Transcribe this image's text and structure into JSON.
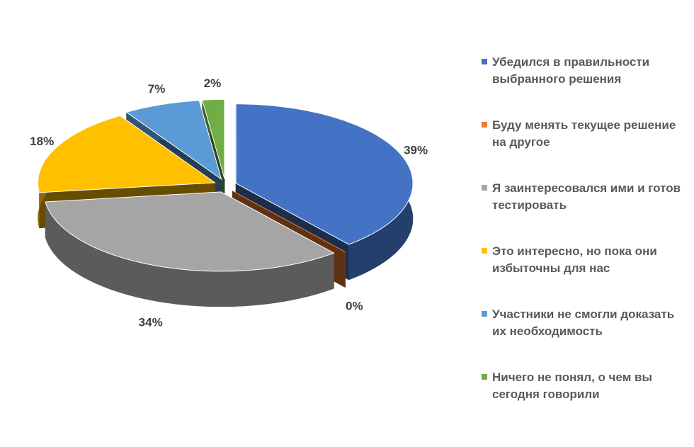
{
  "chart_data": {
    "type": "pie",
    "categories": [
      "Убедился в правильности выбранного решения",
      "Буду менять текущее решение на другое",
      "Я заинтересовался ими и готов тестировать",
      "Это интересно, но пока они избыточны для нас",
      "Участники не смогли доказать их необходимость",
      "Ничего не понял, о чем вы сегодня говорили"
    ],
    "values": [
      39,
      0,
      34,
      18,
      7,
      2
    ],
    "value_labels": [
      "39%",
      "0%",
      "34%",
      "18%",
      "7%",
      "2%"
    ],
    "colors": [
      "#4472c4",
      "#ed7d31",
      "#a5a5a5",
      "#ffc000",
      "#5b9bd5",
      "#70ad47"
    ],
    "legend": "right"
  }
}
